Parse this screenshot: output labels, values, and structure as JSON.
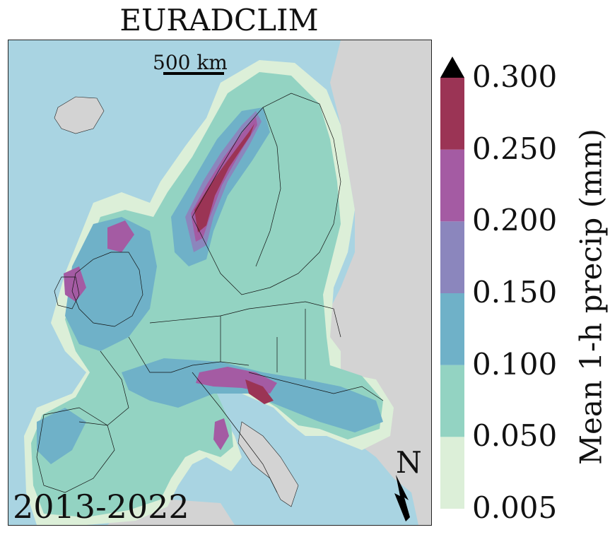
{
  "title": "EURADCLIM",
  "period": "2013-2022",
  "scale_bar": {
    "label": "500 km"
  },
  "north_arrow": {
    "label": "N"
  },
  "colorbar": {
    "label": "Mean 1-h precip (mm)",
    "ticks": [
      "0.005",
      "0.050",
      "0.100",
      "0.150",
      "0.200",
      "0.250",
      "0.300"
    ],
    "bins": [
      {
        "from": 0.005,
        "to": 0.05,
        "color": "#dcefd8"
      },
      {
        "from": 0.05,
        "to": 0.1,
        "color": "#93d3c2"
      },
      {
        "from": 0.1,
        "to": 0.15,
        "color": "#6fb1c8"
      },
      {
        "from": 0.15,
        "to": 0.2,
        "color": "#8b86bd"
      },
      {
        "from": 0.2,
        "to": 0.25,
        "color": "#a45ba3"
      },
      {
        "from": 0.25,
        "to": 0.3,
        "color": "#9b3455"
      }
    ],
    "extend": "max",
    "extend_color": "#000000"
  },
  "colors": {
    "sea": "#a9d4e2",
    "land_outside": "#d3d3d3",
    "borders": "#111111"
  }
}
